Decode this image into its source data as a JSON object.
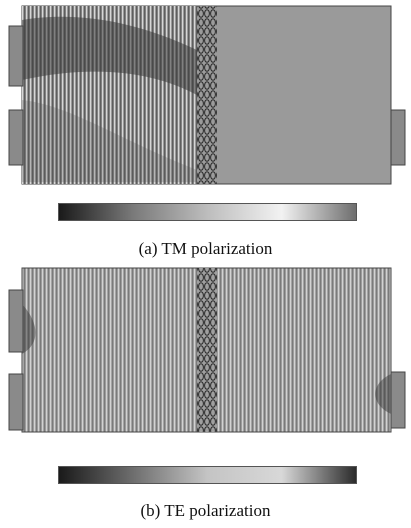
{
  "figure": {
    "panels": [
      {
        "id": "a",
        "caption": "(a) TM polarization",
        "colorbar": {
          "colors": [
            "#1a1a1a",
            "#7a7a7a",
            "#bdbdbd",
            "#f2f2f2",
            "#6e6e6e"
          ]
        }
      },
      {
        "id": "b",
        "caption": "(b) TE polarization",
        "colorbar": {
          "colors": [
            "#1a1a1a",
            "#6e6e6e",
            "#c4c4c4",
            "#d8d8d8",
            "#2b2b2b"
          ]
        }
      }
    ]
  }
}
